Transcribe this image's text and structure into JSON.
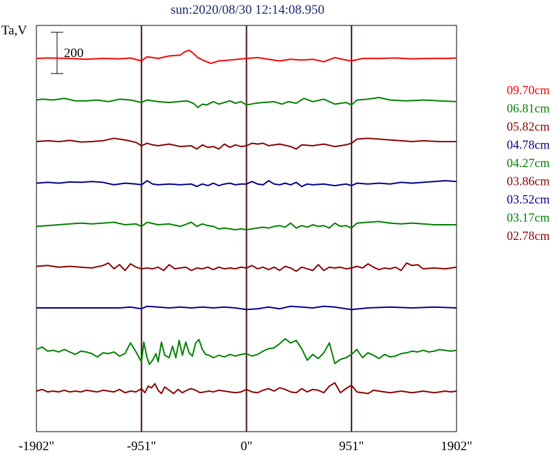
{
  "chart_data": {
    "type": "line",
    "title": "sun:2020/08/30 12:14:08.950",
    "ylabel": "Ta,V",
    "scale_bar_label": "200",
    "x_ticks": [
      "-1902\"",
      "-951\"",
      "0\"",
      "951\"",
      "1902\""
    ],
    "xlim": [
      -1902,
      1902
    ],
    "vlines_at": [
      -951,
      0,
      951
    ],
    "grid": false,
    "legend_position": "right",
    "colors": {
      "title": "#1a2a6e",
      "axes": "#000000",
      "vline": "#3d1010"
    },
    "series": [
      {
        "name": "09.70cm",
        "color": "#ff0000",
        "x": [
          -1902,
          -1800,
          -1600,
          -1450,
          -1300,
          -1150,
          -1050,
          -951,
          -900,
          -800,
          -700,
          -600,
          -560,
          -520,
          -480,
          -440,
          -380,
          -320,
          -250,
          -150,
          -80,
          0,
          100,
          200,
          300,
          400,
          500,
          600,
          700,
          800,
          900,
          951,
          1050,
          1200,
          1350,
          1500,
          1650,
          1800,
          1902
        ],
        "y": [
          0,
          1,
          0,
          -2,
          0,
          -1,
          1,
          -6,
          4,
          0,
          6,
          8,
          16,
          20,
          12,
          2,
          -6,
          -12,
          -6,
          -4,
          -2,
          0,
          2,
          -2,
          -6,
          -2,
          -4,
          -2,
          -8,
          2,
          -4,
          -6,
          0,
          0,
          1,
          -1,
          0,
          0,
          1
        ]
      },
      {
        "name": "06.81cm",
        "color": "#008000",
        "x": [
          -1902,
          -1850,
          -1750,
          -1650,
          -1550,
          -1450,
          -1350,
          -1250,
          -1150,
          -1050,
          -951,
          -900,
          -800,
          -700,
          -620,
          -540,
          -480,
          -440,
          -400,
          -360,
          -300,
          -250,
          -200,
          -150,
          -100,
          -50,
          0,
          80,
          150,
          250,
          320,
          380,
          450,
          520,
          600,
          700,
          800,
          900,
          951,
          1000,
          1100,
          1200,
          1300,
          1450,
          1600,
          1750,
          1902
        ],
        "y": [
          0,
          2,
          0,
          4,
          -2,
          -2,
          0,
          -4,
          2,
          0,
          -6,
          0,
          -4,
          -6,
          -4,
          -2,
          -8,
          -18,
          -10,
          -12,
          -4,
          -10,
          -6,
          -2,
          -8,
          -4,
          -12,
          -8,
          -6,
          -4,
          -10,
          -4,
          -8,
          4,
          -4,
          2,
          -10,
          -6,
          -12,
          0,
          2,
          6,
          0,
          -2,
          0,
          -2,
          -4
        ]
      },
      {
        "name": "05.82cm",
        "color": "#8b0000",
        "x": [
          -1902,
          -1800,
          -1700,
          -1600,
          -1500,
          -1400,
          -1300,
          -1200,
          -1100,
          -1000,
          -951,
          -900,
          -850,
          -800,
          -700,
          -600,
          -500,
          -450,
          -400,
          -350,
          -300,
          -250,
          -200,
          -150,
          -100,
          -50,
          0,
          50,
          100,
          150,
          200,
          250,
          300,
          400,
          450,
          500,
          600,
          700,
          800,
          900,
          951,
          1000,
          1100,
          1200,
          1300,
          1400,
          1500,
          1600,
          1750,
          1902
        ],
        "y": [
          0,
          2,
          0,
          3,
          -1,
          0,
          2,
          8,
          4,
          -2,
          -10,
          -4,
          -8,
          -10,
          -6,
          -12,
          -10,
          -18,
          -8,
          -14,
          -12,
          -18,
          -6,
          -14,
          -8,
          -12,
          -10,
          -4,
          -6,
          -4,
          -10,
          -8,
          -6,
          -12,
          -18,
          -8,
          -10,
          -6,
          -12,
          -8,
          -4,
          6,
          8,
          6,
          4,
          2,
          0,
          2,
          0,
          0
        ]
      },
      {
        "name": "04.78cm",
        "color": "#00008b",
        "x": [
          -1902,
          -1800,
          -1700,
          -1600,
          -1500,
          -1400,
          -1300,
          -1200,
          -1100,
          -1000,
          -951,
          -900,
          -850,
          -800,
          -700,
          -600,
          -500,
          -450,
          -400,
          -350,
          -300,
          -250,
          -200,
          -150,
          -100,
          -50,
          0,
          50,
          100,
          150,
          200,
          250,
          300,
          350,
          400,
          450,
          500,
          550,
          600,
          700,
          800,
          900,
          951,
          1000,
          1100,
          1200,
          1300,
          1400,
          1500,
          1600,
          1700,
          1800,
          1902
        ],
        "y": [
          0,
          2,
          0,
          3,
          2,
          4,
          2,
          -4,
          0,
          -2,
          -4,
          6,
          -2,
          -4,
          -2,
          -4,
          -2,
          -8,
          -2,
          -6,
          0,
          -6,
          -2,
          0,
          -4,
          -2,
          -2,
          4,
          -2,
          -4,
          6,
          -2,
          -4,
          0,
          -4,
          2,
          -8,
          -2,
          -4,
          -2,
          -6,
          -2,
          -6,
          0,
          -2,
          0,
          -2,
          2,
          0,
          2,
          4,
          6,
          4
        ]
      },
      {
        "name": "04.27cm",
        "color": "#008000",
        "x": [
          -1902,
          -1800,
          -1700,
          -1600,
          -1500,
          -1400,
          -1300,
          -1200,
          -1100,
          -1000,
          -951,
          -900,
          -800,
          -700,
          -600,
          -500,
          -450,
          -400,
          -350,
          -300,
          -250,
          -200,
          -150,
          -100,
          -50,
          0,
          50,
          100,
          150,
          200,
          250,
          300,
          350,
          400,
          450,
          500,
          550,
          600,
          650,
          700,
          750,
          800,
          850,
          900,
          951,
          1000,
          1100,
          1200,
          1300,
          1400,
          1500,
          1600,
          1700,
          1800,
          1902
        ],
        "y": [
          -4,
          -2,
          0,
          2,
          4,
          2,
          4,
          6,
          0,
          2,
          -4,
          6,
          0,
          2,
          -4,
          6,
          -4,
          2,
          -2,
          -4,
          -10,
          -8,
          -10,
          -12,
          -10,
          -12,
          -10,
          -8,
          -6,
          -8,
          -4,
          -2,
          -6,
          4,
          -8,
          -2,
          -6,
          0,
          -4,
          -2,
          -8,
          4,
          -4,
          -2,
          -8,
          4,
          6,
          8,
          4,
          2,
          4,
          2,
          0,
          0,
          0
        ]
      },
      {
        "name": "03.86cm",
        "color": "#8b0000",
        "x": [
          -1902,
          -1800,
          -1700,
          -1600,
          -1500,
          -1400,
          -1300,
          -1250,
          -1200,
          -1150,
          -1100,
          -1050,
          -1000,
          -951,
          -900,
          -850,
          -800,
          -750,
          -700,
          -650,
          -600,
          -550,
          -500,
          -450,
          -400,
          -350,
          -300,
          -250,
          -200,
          -150,
          -100,
          -50,
          0,
          50,
          100,
          150,
          200,
          250,
          300,
          350,
          400,
          450,
          500,
          550,
          600,
          650,
          700,
          750,
          800,
          850,
          900,
          951,
          1000,
          1050,
          1100,
          1150,
          1200,
          1250,
          1300,
          1350,
          1400,
          1450,
          1500,
          1550,
          1600,
          1700,
          1800,
          1902
        ],
        "y": [
          0,
          2,
          -2,
          0,
          -2,
          -4,
          2,
          8,
          -6,
          4,
          -10,
          6,
          -2,
          -6,
          -4,
          -6,
          -2,
          -10,
          4,
          -6,
          -4,
          -2,
          -10,
          -4,
          -6,
          -2,
          -8,
          -2,
          -6,
          -4,
          -6,
          -2,
          -4,
          2,
          -6,
          -2,
          -8,
          -2,
          -10,
          0,
          -4,
          -12,
          -2,
          -6,
          -10,
          4,
          -10,
          -2,
          -4,
          -2,
          -6,
          -4,
          0,
          -4,
          6,
          -2,
          -8,
          -4,
          -6,
          -2,
          -10,
          8,
          2,
          4,
          -6,
          -4,
          -6,
          -2
        ]
      },
      {
        "name": "03.52cm",
        "color": "#00008b",
        "x": [
          -1902,
          -1700,
          -1500,
          -1300,
          -1150,
          -1050,
          -951,
          -900,
          -800,
          -700,
          -600,
          -500,
          -400,
          -300,
          -200,
          -100,
          0,
          100,
          200,
          300,
          400,
          500,
          600,
          700,
          800,
          900,
          951,
          1100,
          1300,
          1500,
          1700,
          1902
        ],
        "y": [
          0,
          0,
          0,
          0,
          0,
          2,
          -2,
          4,
          2,
          0,
          2,
          0,
          2,
          0,
          2,
          0,
          -4,
          -2,
          2,
          -2,
          4,
          2,
          0,
          4,
          2,
          -2,
          -4,
          0,
          2,
          0,
          2,
          0
        ]
      },
      {
        "name": "03.17cm",
        "color": "#008000",
        "x": [
          -1902,
          -1850,
          -1800,
          -1750,
          -1700,
          -1650,
          -1600,
          -1550,
          -1500,
          -1450,
          -1400,
          -1350,
          -1300,
          -1250,
          -1200,
          -1150,
          -1100,
          -1050,
          -1000,
          -951,
          -930,
          -900,
          -880,
          -850,
          -820,
          -800,
          -770,
          -740,
          -700,
          -670,
          -640,
          -610,
          -580,
          -550,
          -520,
          -490,
          -460,
          -430,
          -400,
          -370,
          -340,
          -300,
          -250,
          -200,
          -150,
          -100,
          -50,
          0,
          50,
          100,
          150,
          200,
          250,
          300,
          350,
          400,
          450,
          500,
          550,
          600,
          650,
          700,
          750,
          800,
          850,
          900,
          951,
          1000,
          1050,
          1100,
          1150,
          1200,
          1250,
          1300,
          1350,
          1400,
          1450,
          1500,
          1550,
          1600,
          1650,
          1700,
          1750,
          1800,
          1850,
          1902
        ],
        "y": [
          0,
          6,
          -4,
          -2,
          -6,
          0,
          -6,
          -12,
          -4,
          -6,
          -10,
          -18,
          -8,
          -10,
          -6,
          -16,
          -10,
          16,
          -6,
          -30,
          18,
          -20,
          -36,
          -26,
          -10,
          -30,
          18,
          -14,
          -20,
          8,
          -20,
          22,
          -14,
          18,
          -8,
          -16,
          16,
          24,
          0,
          -12,
          -14,
          -20,
          -14,
          -18,
          -12,
          -16,
          -12,
          -10,
          -16,
          -12,
          -4,
          2,
          4,
          14,
          26,
          16,
          22,
          2,
          -26,
          -12,
          -22,
          -8,
          16,
          -34,
          -24,
          -20,
          -12,
          0,
          -20,
          -8,
          -14,
          -22,
          -12,
          -18,
          -16,
          -10,
          -8,
          -4,
          -6,
          -2,
          -6,
          -4,
          0,
          -2,
          -4,
          -2
        ]
      },
      {
        "name": "02.78cm",
        "color": "#8b0000",
        "x": [
          -1902,
          -1850,
          -1800,
          -1750,
          -1700,
          -1650,
          -1600,
          -1550,
          -1500,
          -1450,
          -1400,
          -1350,
          -1300,
          -1250,
          -1200,
          -1150,
          -1100,
          -1050,
          -1000,
          -951,
          -920,
          -890,
          -860,
          -830,
          -800,
          -770,
          -740,
          -700,
          -660,
          -620,
          -580,
          -540,
          -500,
          -460,
          -420,
          -380,
          -340,
          -300,
          -250,
          -200,
          -150,
          -100,
          -50,
          0,
          50,
          100,
          150,
          200,
          250,
          300,
          350,
          400,
          450,
          500,
          550,
          600,
          650,
          700,
          750,
          800,
          850,
          900,
          951,
          1000,
          1050,
          1100,
          1150,
          1200,
          1250,
          1300,
          1350,
          1400,
          1450,
          1500,
          1550,
          1600,
          1650,
          1700,
          1750,
          1800,
          1850,
          1902
        ],
        "y": [
          0,
          4,
          -2,
          0,
          -2,
          2,
          -2,
          0,
          -2,
          2,
          0,
          -2,
          2,
          0,
          -2,
          4,
          -4,
          0,
          -2,
          6,
          -4,
          12,
          8,
          18,
          2,
          -6,
          10,
          2,
          -6,
          4,
          -4,
          2,
          6,
          2,
          -4,
          -2,
          0,
          -2,
          2,
          0,
          -2,
          -4,
          -2,
          4,
          -2,
          -4,
          2,
          6,
          0,
          8,
          4,
          -2,
          -4,
          6,
          -2,
          4,
          2,
          -4,
          12,
          20,
          -4,
          6,
          14,
          -2,
          -4,
          -6,
          2,
          0,
          -2,
          -4,
          -2,
          0,
          -2,
          -4,
          -2,
          0,
          -2,
          -4,
          -2,
          0,
          -2,
          0
        ]
      }
    ]
  }
}
